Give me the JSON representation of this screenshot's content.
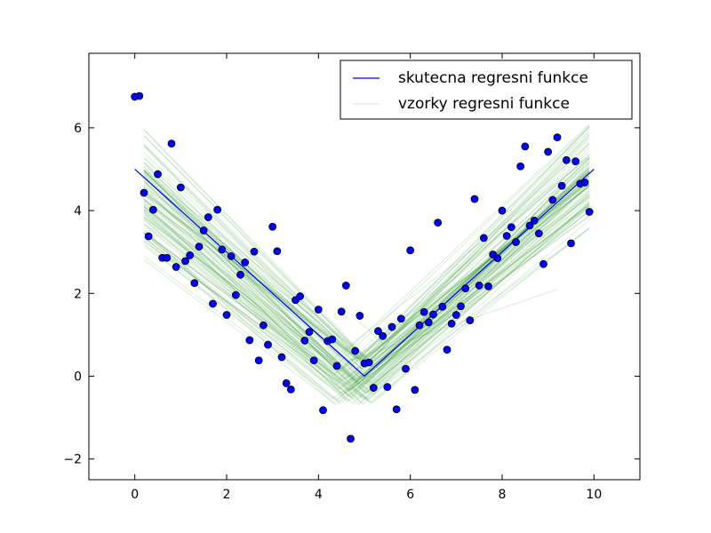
{
  "chart_data": {
    "type": "scatter",
    "title": "",
    "xlabel": "",
    "ylabel": "",
    "xlim": [
      -1,
      11
    ],
    "ylim": [
      -2.5,
      7.8
    ],
    "x_ticks": [
      0,
      2,
      4,
      6,
      8,
      10
    ],
    "y_ticks": [
      -2,
      0,
      2,
      4,
      6
    ],
    "x_tick_labels": [
      "0",
      "2",
      "4",
      "6",
      "8",
      "10"
    ],
    "y_tick_labels": [
      "−2",
      "0",
      "2",
      "4",
      "6"
    ],
    "grid": false,
    "legend_position": "top-right",
    "colors": {
      "true_line": "#0000ff",
      "samples": "#008000",
      "points": "#0000ff"
    },
    "true_function": {
      "name": "skutecna regresni funkce",
      "x": [
        0,
        5,
        10
      ],
      "y": [
        5,
        0,
        5
      ]
    },
    "sample_functions": {
      "name": "vzorky regresni funkce",
      "count": 100,
      "x_range": [
        0.2,
        9.9
      ]
    },
    "points": {
      "x": [
        0.0,
        0.1,
        0.2,
        0.3,
        0.4,
        0.5,
        0.6,
        0.7,
        0.8,
        0.9,
        1.0,
        1.1,
        1.2,
        1.3,
        1.4,
        1.5,
        1.6,
        1.7,
        1.8,
        1.9,
        2.0,
        2.1,
        2.2,
        2.3,
        2.4,
        2.5,
        2.6,
        2.7,
        2.8,
        2.9,
        3.0,
        3.1,
        3.2,
        3.3,
        3.4,
        3.5,
        3.6,
        3.7,
        3.8,
        3.9,
        4.0,
        4.1,
        4.2,
        4.3,
        4.4,
        4.5,
        4.6,
        4.7,
        4.8,
        4.9,
        5.0,
        5.1,
        5.2,
        5.3,
        5.4,
        5.5,
        5.6,
        5.7,
        5.8,
        5.9,
        6.0,
        6.1,
        6.2,
        6.3,
        6.4,
        6.5,
        6.6,
        6.7,
        6.8,
        6.9,
        7.0,
        7.1,
        7.2,
        7.3,
        7.4,
        7.5,
        7.6,
        7.7,
        7.8,
        7.9,
        8.0,
        8.1,
        8.2,
        8.3,
        8.4,
        8.5,
        8.6,
        8.7,
        8.8,
        8.9,
        9.0,
        9.1,
        9.2,
        9.3,
        9.4,
        9.5,
        9.6,
        9.7,
        9.8,
        9.9
      ],
      "y": [
        6.75,
        6.77,
        4.43,
        3.38,
        4.02,
        4.88,
        2.86,
        2.86,
        5.62,
        2.64,
        4.56,
        2.78,
        2.92,
        2.25,
        3.13,
        3.52,
        3.84,
        1.75,
        4.02,
        3.06,
        1.48,
        2.9,
        1.96,
        2.45,
        2.75,
        0.87,
        3.01,
        0.38,
        1.23,
        0.76,
        3.61,
        3.02,
        0.46,
        -0.17,
        -0.32,
        1.84,
        1.93,
        0.86,
        1.07,
        0.38,
        1.61,
        -0.82,
        0.85,
        0.89,
        0.25,
        1.56,
        2.19,
        -1.51,
        0.61,
        1.46,
        0.31,
        0.33,
        -0.28,
        1.09,
        0.97,
        -0.26,
        1.19,
        -0.8,
        1.39,
        0.18,
        3.04,
        -0.33,
        1.23,
        1.55,
        1.3,
        1.49,
        3.71,
        1.68,
        0.64,
        1.27,
        1.48,
        1.69,
        2.12,
        1.35,
        4.28,
        2.19,
        3.34,
        2.17,
        2.94,
        2.85,
        4.0,
        3.39,
        3.6,
        3.24,
        5.07,
        5.55,
        3.64,
        3.76,
        3.45,
        2.71,
        5.42,
        4.26,
        5.77,
        4.6,
        5.22,
        3.21,
        5.19,
        4.65,
        4.68,
        3.97
      ]
    }
  }
}
